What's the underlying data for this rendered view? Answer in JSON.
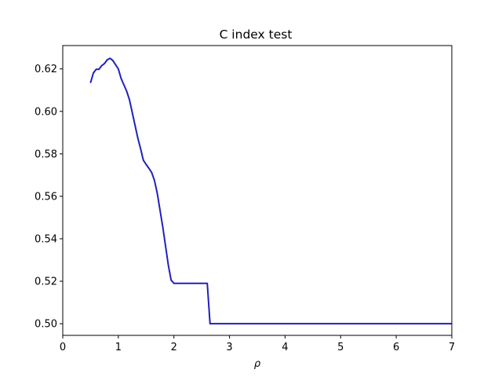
{
  "chart_data": {
    "type": "line",
    "title": "C index test",
    "xlabel": "ρ",
    "ylabel": "",
    "xlim": [
      0,
      7
    ],
    "ylim": [
      0.4945,
      0.631
    ],
    "xticks": [
      "0",
      "1",
      "2",
      "3",
      "4",
      "5",
      "6",
      "7"
    ],
    "yticks": [
      "0.50",
      "0.52",
      "0.54",
      "0.56",
      "0.58",
      "0.60",
      "0.62"
    ],
    "grid": false,
    "line_color": "#2020c0",
    "series": [
      {
        "x": [
          0.5,
          0.55,
          0.6,
          0.65,
          0.7,
          0.75,
          0.8,
          0.85,
          0.9,
          0.95,
          1.0,
          1.05,
          1.1,
          1.15,
          1.2,
          1.25,
          1.3,
          1.35,
          1.4,
          1.45,
          1.5,
          1.55,
          1.6,
          1.65,
          1.7,
          1.75,
          1.8,
          1.85,
          1.9,
          1.95,
          2.0,
          2.05,
          2.1,
          2.15,
          2.2,
          2.25,
          2.3,
          2.4,
          2.5,
          2.6,
          2.65,
          3.0,
          4.0,
          5.0,
          6.0,
          7.0
        ],
        "y": [
          0.6135,
          0.618,
          0.6198,
          0.6198,
          0.6215,
          0.6225,
          0.6243,
          0.625,
          0.624,
          0.622,
          0.62,
          0.6155,
          0.6125,
          0.6095,
          0.6055,
          0.5995,
          0.5935,
          0.5875,
          0.5825,
          0.577,
          0.575,
          0.5732,
          0.5712,
          0.5675,
          0.5615,
          0.5535,
          0.5455,
          0.5365,
          0.5275,
          0.5205,
          0.519,
          0.519,
          0.519,
          0.519,
          0.519,
          0.519,
          0.519,
          0.519,
          0.519,
          0.519,
          0.5,
          0.5,
          0.5,
          0.5,
          0.5,
          0.5
        ]
      }
    ]
  }
}
